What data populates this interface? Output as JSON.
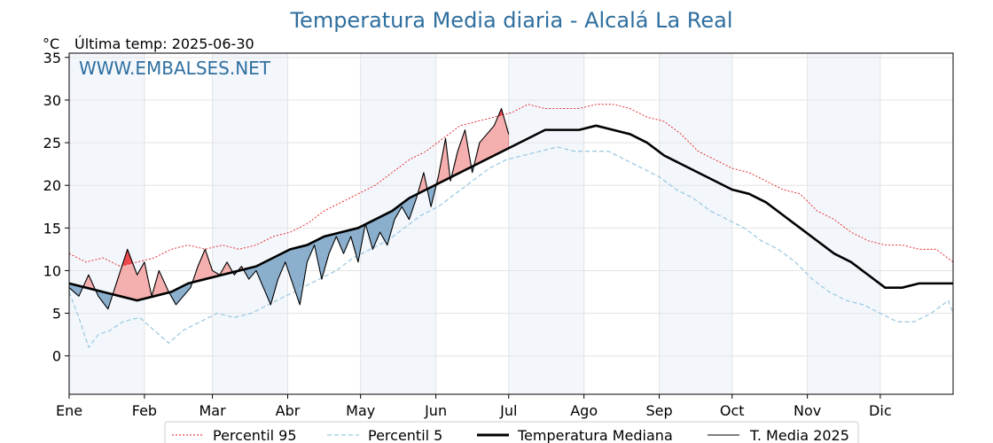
{
  "chart_data": {
    "type": "line",
    "title": "Temperatura Media diaria - Alcalá La Real",
    "unit_label": "°C",
    "last_temp_label": "Última temp: 2025-06-30",
    "watermark": "WWW.EMBALSES.NET",
    "ylim": [
      -4.5,
      35.5
    ],
    "y_ticks": [
      0,
      5,
      10,
      15,
      20,
      25,
      30,
      35
    ],
    "months": [
      "Ene",
      "Feb",
      "Mar",
      "Abr",
      "May",
      "Jun",
      "Jul",
      "Ago",
      "Sep",
      "Oct",
      "Nov",
      "Dic"
    ],
    "month_start_days": [
      1,
      32,
      60,
      91,
      121,
      152,
      182,
      213,
      244,
      274,
      305,
      335
    ],
    "grid": true,
    "legend_position": "bottom",
    "colors": {
      "p95": "#e31a1c",
      "p5": "#9ecae1",
      "median": "#000000",
      "current": "#000000",
      "above": "#f4a6a6",
      "above_extreme": "#e8393e",
      "below": "#7ea6c8",
      "band": "#dce9f5"
    },
    "series": [
      {
        "name": "Percentil 95",
        "key": "p95",
        "points": [
          [
            1,
            12
          ],
          [
            8,
            11
          ],
          [
            15,
            11.5
          ],
          [
            22,
            10.5
          ],
          [
            29,
            11
          ],
          [
            36,
            11.5
          ],
          [
            43,
            12.5
          ],
          [
            50,
            13
          ],
          [
            57,
            12.5
          ],
          [
            64,
            13
          ],
          [
            71,
            12.5
          ],
          [
            78,
            13
          ],
          [
            85,
            14
          ],
          [
            92,
            14.5
          ],
          [
            99,
            15.5
          ],
          [
            106,
            17
          ],
          [
            113,
            18
          ],
          [
            120,
            19
          ],
          [
            127,
            20
          ],
          [
            134,
            21.5
          ],
          [
            141,
            23
          ],
          [
            148,
            24
          ],
          [
            155,
            25.5
          ],
          [
            162,
            27
          ],
          [
            169,
            27.5
          ],
          [
            176,
            28
          ],
          [
            183,
            28.5
          ],
          [
            190,
            29.5
          ],
          [
            197,
            29
          ],
          [
            204,
            29
          ],
          [
            211,
            29
          ],
          [
            218,
            29.5
          ],
          [
            225,
            29.5
          ],
          [
            232,
            29
          ],
          [
            239,
            28
          ],
          [
            246,
            27.5
          ],
          [
            253,
            26
          ],
          [
            260,
            24
          ],
          [
            267,
            23
          ],
          [
            274,
            22
          ],
          [
            281,
            21.5
          ],
          [
            288,
            20.5
          ],
          [
            295,
            19.5
          ],
          [
            302,
            19
          ],
          [
            309,
            17
          ],
          [
            316,
            16
          ],
          [
            323,
            14.5
          ],
          [
            330,
            13.5
          ],
          [
            337,
            13
          ],
          [
            344,
            13
          ],
          [
            351,
            12.5
          ],
          [
            358,
            12.5
          ],
          [
            365,
            11
          ]
        ]
      },
      {
        "name": "Percentil 5",
        "key": "p5",
        "points": [
          [
            1,
            7.5
          ],
          [
            5,
            4.5
          ],
          [
            9,
            1
          ],
          [
            13,
            2.5
          ],
          [
            18,
            3
          ],
          [
            23,
            4
          ],
          [
            30,
            4.5
          ],
          [
            36,
            3
          ],
          [
            42,
            1.5
          ],
          [
            48,
            3
          ],
          [
            55,
            4
          ],
          [
            62,
            5
          ],
          [
            69,
            4.5
          ],
          [
            76,
            5
          ],
          [
            83,
            6
          ],
          [
            90,
            7
          ],
          [
            97,
            8
          ],
          [
            104,
            9
          ],
          [
            111,
            10
          ],
          [
            118,
            11.5
          ],
          [
            125,
            12.5
          ],
          [
            132,
            13.5
          ],
          [
            139,
            15
          ],
          [
            146,
            16.5
          ],
          [
            153,
            17.5
          ],
          [
            160,
            19
          ],
          [
            167,
            20.5
          ],
          [
            174,
            22
          ],
          [
            181,
            23
          ],
          [
            188,
            23.5
          ],
          [
            195,
            24
          ],
          [
            202,
            24.5
          ],
          [
            209,
            24
          ],
          [
            216,
            24
          ],
          [
            223,
            24
          ],
          [
            230,
            23
          ],
          [
            237,
            22
          ],
          [
            244,
            21
          ],
          [
            251,
            19.5
          ],
          [
            258,
            18.5
          ],
          [
            265,
            17
          ],
          [
            272,
            16
          ],
          [
            279,
            15
          ],
          [
            286,
            13.5
          ],
          [
            293,
            12.5
          ],
          [
            300,
            11
          ],
          [
            307,
            9
          ],
          [
            314,
            7.5
          ],
          [
            321,
            6.5
          ],
          [
            328,
            6
          ],
          [
            335,
            5
          ],
          [
            342,
            4
          ],
          [
            349,
            4
          ],
          [
            356,
            5
          ],
          [
            363,
            6.5
          ],
          [
            365,
            5
          ]
        ]
      },
      {
        "name": "Temperatura Mediana",
        "key": "median",
        "points": [
          [
            1,
            8.5
          ],
          [
            8,
            8
          ],
          [
            15,
            7.5
          ],
          [
            22,
            7
          ],
          [
            29,
            6.5
          ],
          [
            36,
            7
          ],
          [
            43,
            7.5
          ],
          [
            50,
            8.5
          ],
          [
            57,
            9
          ],
          [
            64,
            9.5
          ],
          [
            71,
            10
          ],
          [
            78,
            10.5
          ],
          [
            85,
            11.5
          ],
          [
            92,
            12.5
          ],
          [
            99,
            13
          ],
          [
            106,
            14
          ],
          [
            113,
            14.5
          ],
          [
            120,
            15
          ],
          [
            127,
            16
          ],
          [
            134,
            17
          ],
          [
            141,
            18.5
          ],
          [
            148,
            19.5
          ],
          [
            155,
            20.5
          ],
          [
            162,
            21.5
          ],
          [
            169,
            22.5
          ],
          [
            176,
            23.5
          ],
          [
            183,
            24.5
          ],
          [
            190,
            25.5
          ],
          [
            197,
            26.5
          ],
          [
            204,
            26.5
          ],
          [
            211,
            26.5
          ],
          [
            218,
            27
          ],
          [
            225,
            26.5
          ],
          [
            232,
            26
          ],
          [
            239,
            25
          ],
          [
            246,
            23.5
          ],
          [
            253,
            22.5
          ],
          [
            260,
            21.5
          ],
          [
            267,
            20.5
          ],
          [
            274,
            19.5
          ],
          [
            281,
            19
          ],
          [
            288,
            18
          ],
          [
            295,
            16.5
          ],
          [
            302,
            15
          ],
          [
            309,
            13.5
          ],
          [
            316,
            12
          ],
          [
            323,
            11
          ],
          [
            330,
            9.5
          ],
          [
            337,
            8
          ],
          [
            344,
            8
          ],
          [
            351,
            8.5
          ],
          [
            358,
            8.5
          ],
          [
            365,
            8.5
          ]
        ]
      },
      {
        "name": "T. Media 2025",
        "key": "current",
        "points": [
          [
            1,
            8
          ],
          [
            5,
            7
          ],
          [
            9,
            9.5
          ],
          [
            13,
            7
          ],
          [
            17,
            5.5
          ],
          [
            21,
            9
          ],
          [
            25,
            12.5
          ],
          [
            29,
            9.5
          ],
          [
            32,
            11
          ],
          [
            35,
            7
          ],
          [
            38,
            10
          ],
          [
            42,
            7.5
          ],
          [
            45,
            6
          ],
          [
            48,
            7
          ],
          [
            51,
            8
          ],
          [
            54,
            10.5
          ],
          [
            57,
            12.5
          ],
          [
            60,
            10
          ],
          [
            63,
            9.5
          ],
          [
            66,
            11
          ],
          [
            69,
            9.5
          ],
          [
            72,
            10.5
          ],
          [
            75,
            9
          ],
          [
            78,
            10
          ],
          [
            81,
            8
          ],
          [
            84,
            6
          ],
          [
            87,
            9
          ],
          [
            90,
            11
          ],
          [
            93,
            8.5
          ],
          [
            96,
            6
          ],
          [
            99,
            11
          ],
          [
            102,
            13
          ],
          [
            105,
            9
          ],
          [
            108,
            12
          ],
          [
            111,
            14
          ],
          [
            114,
            12
          ],
          [
            117,
            14
          ],
          [
            120,
            11
          ],
          [
            123,
            15.5
          ],
          [
            126,
            12.5
          ],
          [
            129,
            14.5
          ],
          [
            132,
            13
          ],
          [
            135,
            16
          ],
          [
            138,
            17.5
          ],
          [
            141,
            16
          ],
          [
            144,
            18.5
          ],
          [
            147,
            21.5
          ],
          [
            150,
            17.5
          ],
          [
            153,
            21
          ],
          [
            156,
            25.5
          ],
          [
            158,
            20.5
          ],
          [
            161,
            24
          ],
          [
            164,
            26.5
          ],
          [
            167,
            21.5
          ],
          [
            170,
            25
          ],
          [
            173,
            26
          ],
          [
            176,
            27
          ],
          [
            179,
            29
          ],
          [
            182,
            26
          ]
        ]
      }
    ]
  },
  "legend": {
    "items": [
      {
        "label": "Percentil 95",
        "key": "p95"
      },
      {
        "label": "Percentil 5",
        "key": "p5"
      },
      {
        "label": "Temperatura Mediana",
        "key": "median"
      },
      {
        "label": "T. Media 2025",
        "key": "current"
      }
    ]
  }
}
